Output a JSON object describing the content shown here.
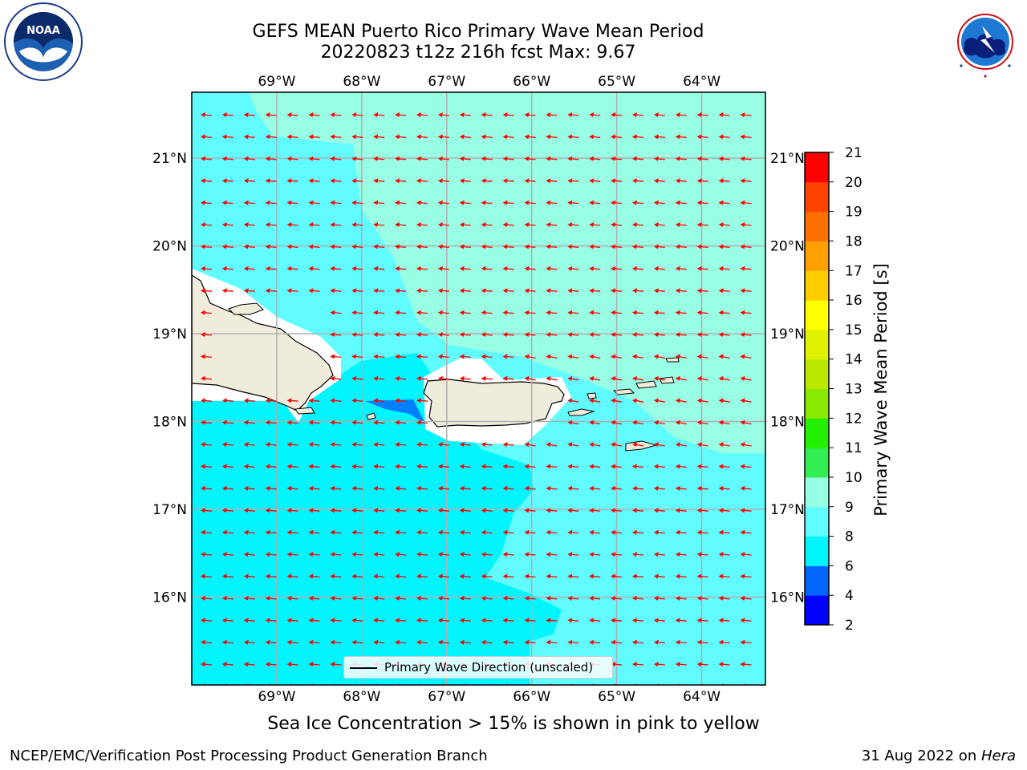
{
  "header": {
    "title_line1": "GEFS MEAN Puerto Rico Primary Wave Mean Period",
    "title_line2": "20220823 t12z 216h fcst   Max: 9.67"
  },
  "logos": {
    "left": {
      "text": "NOAA",
      "ring_text": "NATIONAL OCEANIC AND ATMOSPHERIC ADMINISTRATION · U.S. DEPARTMENT OF COMMERCE",
      "icon": "noaa-seal-icon"
    },
    "right": {
      "ring_text": "NATIONAL WEATHER SERVICE",
      "icon": "nws-seal-icon"
    }
  },
  "map": {
    "lon_labels": [
      "69°W",
      "68°W",
      "67°W",
      "66°W",
      "65°W",
      "64°W"
    ],
    "lat_labels": [
      "21°N",
      "20°N",
      "19°N",
      "18°N",
      "17°N",
      "16°N"
    ],
    "lon_values": [
      -69,
      -68,
      -67,
      -66,
      -65,
      -64
    ],
    "lat_values": [
      21,
      20,
      19,
      18,
      17,
      16
    ],
    "extent": {
      "lon": [
        -70.0,
        -63.25
      ],
      "lat": [
        15.0,
        21.75
      ]
    },
    "wave_direction": "westward",
    "land_color": "#efecdc",
    "vector_color": "#ff0000",
    "legend_label": "Primary Wave Direction (unscaled)"
  },
  "colorbar": {
    "label": "Primary Wave Mean Period [s]",
    "tick_labels": [
      "2",
      "4",
      "6",
      "8",
      "9",
      "10",
      "11",
      "12",
      "13",
      "14",
      "15",
      "16",
      "17",
      "18",
      "19",
      "20",
      "21"
    ],
    "levels": [
      2,
      4,
      6,
      8,
      9,
      10,
      11,
      12,
      13,
      14,
      15,
      16,
      17,
      18,
      19,
      20,
      21
    ],
    "colors": [
      "#0000ff",
      "#0066ff",
      "#00f5ff",
      "#60fcff",
      "#98ffe4",
      "#33ee55",
      "#22f000",
      "#88e800",
      "#bbe800",
      "#dff000",
      "#ffff00",
      "#ffcc00",
      "#ffa000",
      "#ff7000",
      "#ff4400",
      "#ff0000"
    ]
  },
  "note": "Sea Ice Concentration > 15% is shown in pink to yellow",
  "footer": {
    "left": "NCEP/EMC/Verification Post Processing Product Generation Branch",
    "date": "31 Aug 2022 on ",
    "host": "Hera"
  }
}
